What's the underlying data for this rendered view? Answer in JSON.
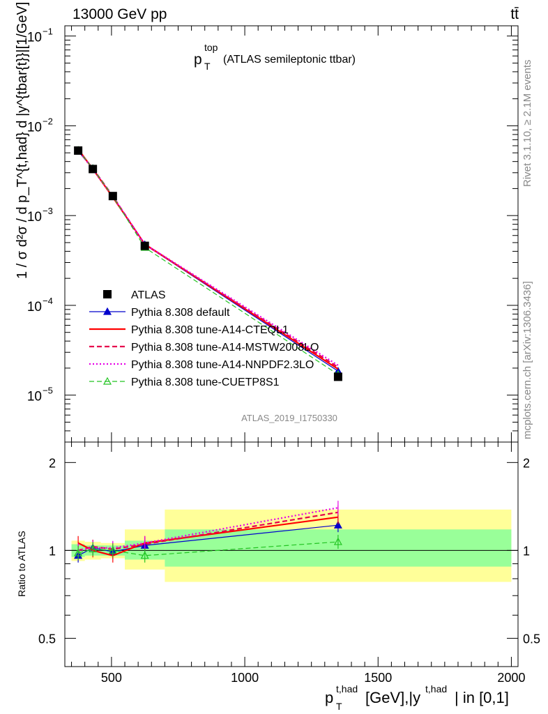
{
  "header": {
    "left": "13000 GeV pp",
    "right": "tt̄"
  },
  "side_labels": {
    "rivet": "Rivet 3.1.10, ≥ 2.1M events",
    "mcplots": "mcplots.cern.ch [arXiv:1306.3436]"
  },
  "analysis_label": "ATLAS_2019_I1750330",
  "colors": {
    "atlas": "#000000",
    "default": "#0000cc",
    "cteql1": "#ff0000",
    "mstw": "#e6004c",
    "nnpdf": "#e600e6",
    "cuetp8s1": "#22c422",
    "band_yellow": "#ffff99",
    "band_green": "#99ff99"
  },
  "chart_data": [
    {
      "type": "line",
      "title": "p_T^top (ATLAS semileptonic ttbar)",
      "title_parts": {
        "base": "p",
        "sup": "top",
        "sub": "T",
        "rest": "(ATLAS semileptonic ttbar)"
      },
      "ylabel": "1 / σ d²σ / d p_T^{t,had} d |y^{tbar{t}}|[1/GeV]",
      "yscale": "log",
      "ylim": [
        3e-06,
        0.13
      ],
      "xlim": [
        325,
        2025
      ],
      "yticks": [
        {
          "value": 1e-05,
          "label": "10",
          "exp": "−5"
        },
        {
          "value": 0.0001,
          "label": "10",
          "exp": "−4"
        },
        {
          "value": 0.001,
          "label": "10",
          "exp": "−3"
        },
        {
          "value": 0.01,
          "label": "10",
          "exp": "−2"
        },
        {
          "value": 0.1,
          "label": "10",
          "exp": "−1"
        }
      ],
      "x": [
        375,
        430,
        505,
        625,
        1350
      ],
      "series": [
        {
          "name": "ATLAS",
          "key": "atlas",
          "style": "data",
          "values": [
            0.0053,
            0.0033,
            0.00165,
            0.00046,
            1.6e-05
          ]
        },
        {
          "name": "Pythia 8.308 default",
          "key": "default",
          "style": "solid-tri",
          "values": [
            0.0052,
            0.00335,
            0.00162,
            0.000475,
            1.85e-05
          ]
        },
        {
          "name": "Pythia 8.308 tune-A14-CTEQL1",
          "key": "cteql1",
          "style": "solid",
          "values": [
            0.0055,
            0.0033,
            0.0016,
            0.00048,
            1.95e-05
          ]
        },
        {
          "name": "Pythia 8.308 tune-A14-MSTW2008LO",
          "key": "mstw",
          "style": "dashed",
          "values": [
            0.00535,
            0.00335,
            0.00165,
            0.000475,
            2.05e-05
          ]
        },
        {
          "name": "Pythia 8.308 tune-A14-NNPDF2.3LO",
          "key": "nnpdf",
          "style": "dotted",
          "values": [
            0.0053,
            0.0033,
            0.00164,
            0.00048,
            2.15e-05
          ]
        },
        {
          "name": "Pythia 8.308 tune-CUETP8S1",
          "key": "cuetp8s1",
          "style": "dashed-tri",
          "values": [
            0.00535,
            0.00335,
            0.00164,
            0.00044,
            1.7e-05
          ]
        }
      ],
      "legend": "left-middle"
    },
    {
      "type": "line",
      "ylabel": "Ratio to ATLAS",
      "yscale": "log",
      "ylim": [
        0.4,
        2.35
      ],
      "xlim": [
        325,
        2025
      ],
      "yticks": [
        {
          "value": 0.5,
          "label": "0.5"
        },
        {
          "value": 1,
          "label": "1"
        },
        {
          "value": 2,
          "label": "2"
        }
      ],
      "xticks": [
        {
          "value": 500,
          "label": "500"
        },
        {
          "value": 1000,
          "label": "1000"
        },
        {
          "value": 1500,
          "label": "1500"
        },
        {
          "value": 2000,
          "label": "2000"
        }
      ],
      "xlabel": "p_T^{t,had} [GeV],|y^{t,had}| in [0,1]",
      "xlabel_parts": {
        "p": "p",
        "sub": "T",
        "sup": "t,had",
        "mid": "[GeV],|y",
        "sup2": "t,had",
        "end": "| in [0,1]"
      },
      "bands": [
        {
          "x0": 350,
          "x1": 400,
          "green": [
            0.95,
            1.05
          ],
          "yellow": [
            0.92,
            1.08
          ]
        },
        {
          "x0": 400,
          "x1": 460,
          "green": [
            0.96,
            1.04
          ],
          "yellow": [
            0.93,
            1.07
          ]
        },
        {
          "x0": 460,
          "x1": 550,
          "green": [
            0.96,
            1.04
          ],
          "yellow": [
            0.94,
            1.06
          ]
        },
        {
          "x0": 550,
          "x1": 700,
          "green": [
            0.93,
            1.08
          ],
          "yellow": [
            0.86,
            1.18
          ]
        },
        {
          "x0": 700,
          "x1": 2000,
          "green": [
            0.88,
            1.18
          ],
          "yellow": [
            0.78,
            1.38
          ]
        }
      ],
      "series": [
        {
          "key": "default",
          "style": "solid-tri",
          "values": [
            0.96,
            1.02,
            0.99,
            1.04,
            1.22
          ]
        },
        {
          "key": "cteql1",
          "style": "solid",
          "values": [
            1.06,
            1.0,
            0.96,
            1.06,
            1.3
          ]
        },
        {
          "key": "mstw",
          "style": "dashed",
          "values": [
            1.0,
            1.03,
            1.01,
            1.05,
            1.35
          ]
        },
        {
          "key": "nnpdf",
          "style": "dotted",
          "values": [
            1.0,
            1.02,
            1.02,
            1.06,
            1.4
          ]
        },
        {
          "key": "cuetp8s1",
          "style": "dashed-tri",
          "values": [
            0.98,
            1.01,
            1.0,
            0.96,
            1.07
          ]
        }
      ]
    }
  ]
}
